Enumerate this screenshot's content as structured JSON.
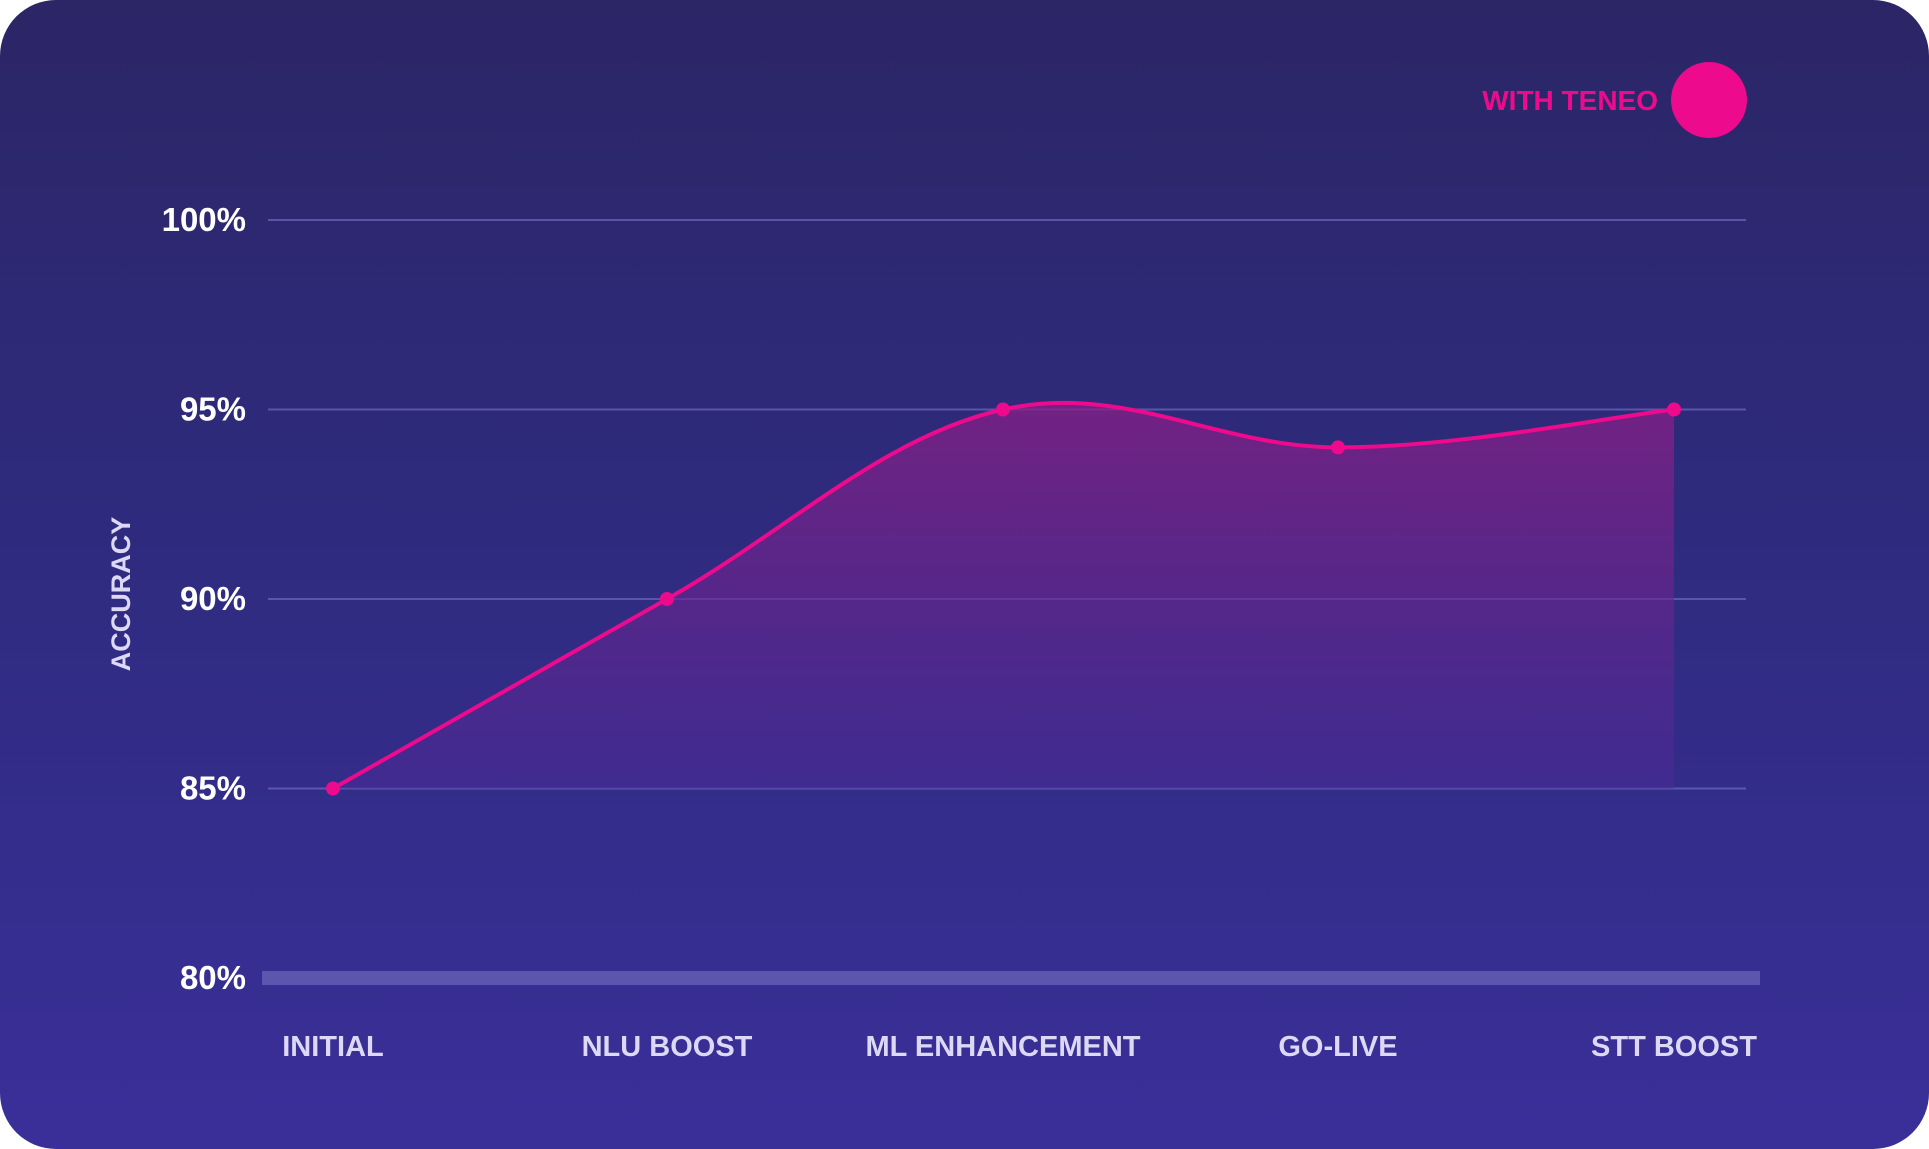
{
  "chart_data": {
    "type": "area",
    "categories": [
      "INITIAL",
      "NLU BOOST",
      "ML ENHANCEMENT",
      "GO-LIVE",
      "STT BOOST"
    ],
    "series": [
      {
        "name": "WITH TENEO",
        "values": [
          85,
          90,
          95,
          94,
          95
        ]
      }
    ],
    "ylabel": "ACCURACY",
    "yticks": [
      "80%",
      "85%",
      "90%",
      "95%",
      "100%"
    ],
    "ylim": [
      80,
      100
    ],
    "grid": true,
    "legend_position": "top-right",
    "smooth": true,
    "colors": {
      "series": "#ee0a8c",
      "grid": "#6a64b8",
      "tick_text": "#ffffff",
      "category_text": "#dcd8f5"
    }
  }
}
